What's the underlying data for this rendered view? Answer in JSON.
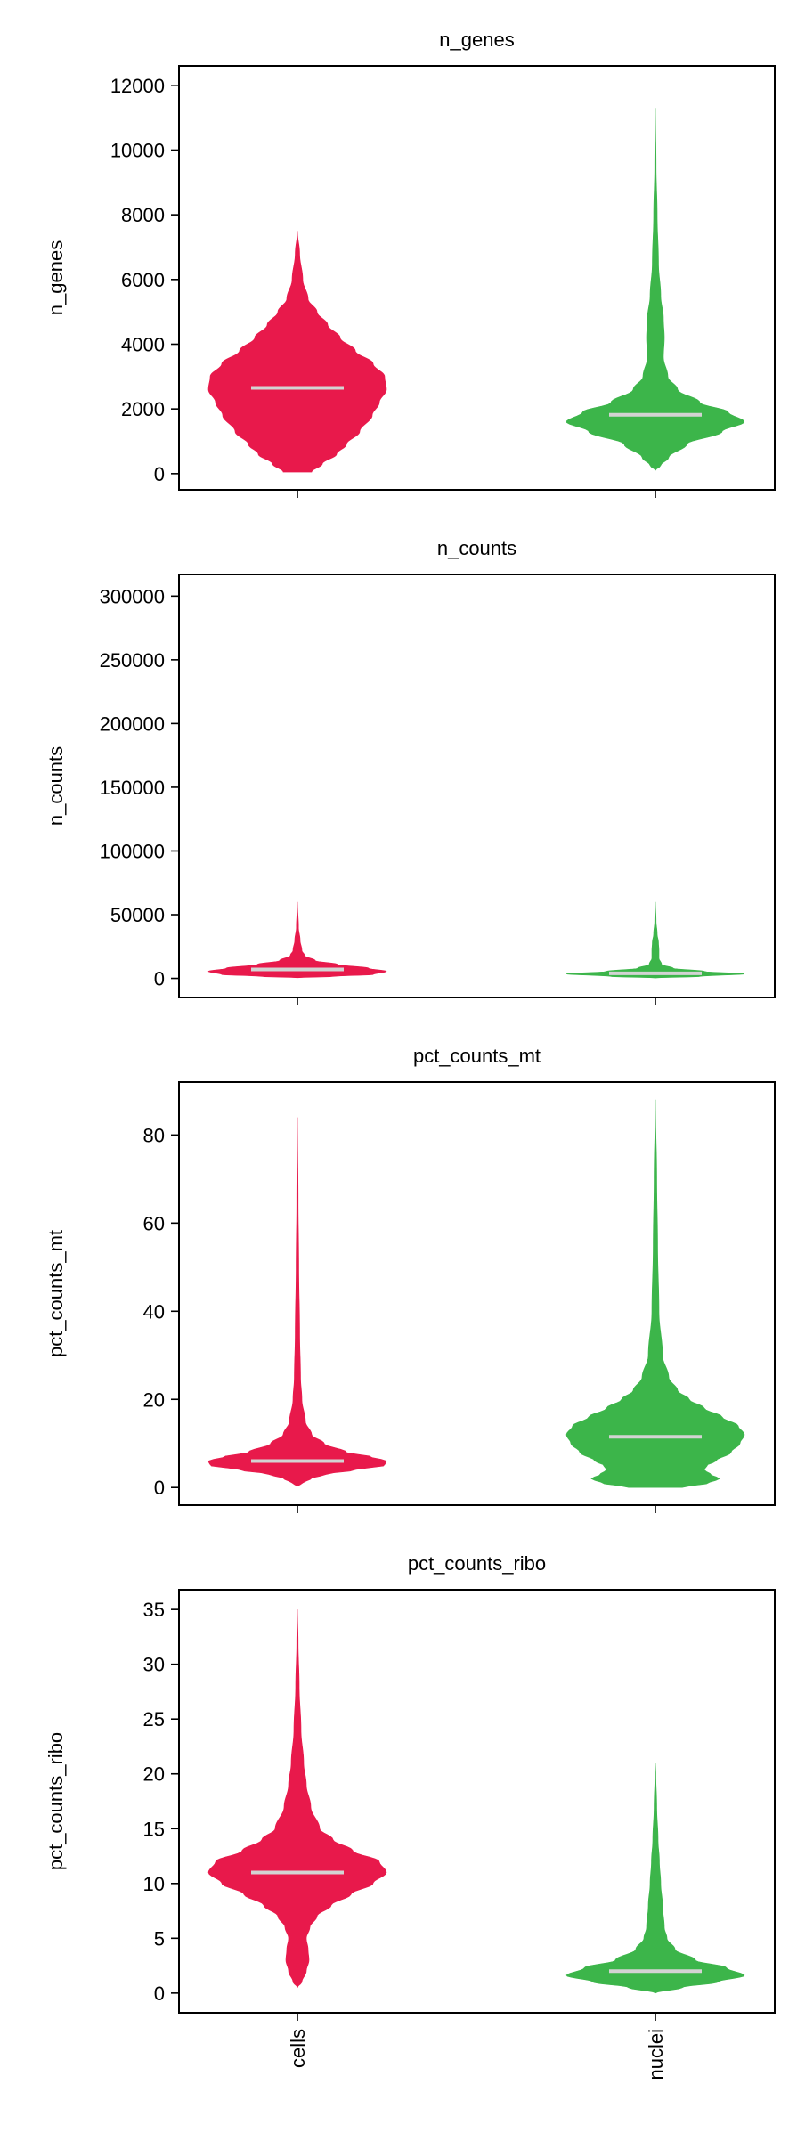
{
  "chart_data": [
    {
      "type": "violin",
      "title": "n_genes",
      "ylabel": "n_genes",
      "categories": [
        "cells",
        "nuclei"
      ],
      "ylim": [
        -500,
        12600
      ],
      "yticks": [
        0,
        2000,
        4000,
        6000,
        8000,
        10000,
        12000
      ],
      "series": [
        {
          "color": "#e8194b",
          "median": 2650,
          "profile": [
            [
              50,
              0.16
            ],
            [
              300,
              0.28
            ],
            [
              600,
              0.44
            ],
            [
              900,
              0.55
            ],
            [
              1300,
              0.7
            ],
            [
              1800,
              0.84
            ],
            [
              2200,
              0.92
            ],
            [
              2600,
              1.0
            ],
            [
              3000,
              0.98
            ],
            [
              3400,
              0.85
            ],
            [
              3800,
              0.65
            ],
            [
              4200,
              0.48
            ],
            [
              4600,
              0.34
            ],
            [
              5000,
              0.22
            ],
            [
              5400,
              0.12
            ],
            [
              6000,
              0.06
            ],
            [
              6800,
              0.025
            ],
            [
              7500,
              0.0
            ]
          ]
        },
        {
          "color": "#3cb54a",
          "median": 1820,
          "profile": [
            [
              100,
              0.0
            ],
            [
              250,
              0.06
            ],
            [
              500,
              0.15
            ],
            [
              900,
              0.35
            ],
            [
              1300,
              0.75
            ],
            [
              1600,
              1.0
            ],
            [
              1900,
              0.82
            ],
            [
              2200,
              0.5
            ],
            [
              2600,
              0.25
            ],
            [
              3000,
              0.14
            ],
            [
              3600,
              0.09
            ],
            [
              4200,
              0.1
            ],
            [
              4800,
              0.09
            ],
            [
              5500,
              0.06
            ],
            [
              6500,
              0.035
            ],
            [
              8000,
              0.02
            ],
            [
              9500,
              0.008
            ],
            [
              11300,
              0.0
            ]
          ]
        }
      ]
    },
    {
      "type": "violin",
      "title": "n_counts",
      "ylabel": "n_counts",
      "categories": [
        "cells",
        "nuclei"
      ],
      "ylim": [
        -15000,
        317000
      ],
      "yticks": [
        0,
        50000,
        100000,
        150000,
        200000,
        250000,
        300000
      ],
      "series": [
        {
          "color": "#e8194b",
          "median": 7000,
          "profile": [
            [
              500,
              0.0
            ],
            [
              1500,
              0.4
            ],
            [
              3000,
              0.85
            ],
            [
              5500,
              1.0
            ],
            [
              8000,
              0.8
            ],
            [
              11000,
              0.45
            ],
            [
              14000,
              0.2
            ],
            [
              18000,
              0.08
            ],
            [
              22000,
              0.05
            ],
            [
              30000,
              0.03
            ],
            [
              40000,
              0.012
            ],
            [
              60000,
              0.0
            ]
          ]
        },
        {
          "color": "#3cb54a",
          "median": 4000,
          "profile": [
            [
              300,
              0.0
            ],
            [
              1500,
              0.5
            ],
            [
              3500,
              1.0
            ],
            [
              5500,
              0.55
            ],
            [
              8000,
              0.2
            ],
            [
              11000,
              0.07
            ],
            [
              16000,
              0.04
            ],
            [
              22000,
              0.04
            ],
            [
              28000,
              0.035
            ],
            [
              35000,
              0.02
            ],
            [
              45000,
              0.008
            ],
            [
              60000,
              0.0
            ]
          ]
        }
      ]
    },
    {
      "type": "violin",
      "title": "pct_counts_mt",
      "ylabel": "pct_counts_mt",
      "categories": [
        "cells",
        "nuclei"
      ],
      "ylim": [
        -4,
        92
      ],
      "yticks": [
        0,
        20,
        40,
        60,
        80
      ],
      "series": [
        {
          "color": "#e8194b",
          "median": 6,
          "profile": [
            [
              0.3,
              0.0
            ],
            [
              1,
              0.06
            ],
            [
              2,
              0.15
            ],
            [
              3,
              0.32
            ],
            [
              4,
              0.65
            ],
            [
              5,
              0.98
            ],
            [
              6,
              1.0
            ],
            [
              7,
              0.82
            ],
            [
              8,
              0.55
            ],
            [
              10,
              0.3
            ],
            [
              12,
              0.16
            ],
            [
              15,
              0.09
            ],
            [
              20,
              0.05
            ],
            [
              25,
              0.035
            ],
            [
              35,
              0.025
            ],
            [
              50,
              0.015
            ],
            [
              65,
              0.008
            ],
            [
              84,
              0.0
            ]
          ]
        },
        {
          "color": "#3cb54a",
          "median": 11.5,
          "profile": [
            [
              0,
              0.3
            ],
            [
              1,
              0.6
            ],
            [
              2,
              0.72
            ],
            [
              3,
              0.62
            ],
            [
              4,
              0.55
            ],
            [
              5,
              0.58
            ],
            [
              6,
              0.68
            ],
            [
              8,
              0.85
            ],
            [
              10,
              0.95
            ],
            [
              12,
              1.0
            ],
            [
              14,
              0.93
            ],
            [
              16,
              0.75
            ],
            [
              18,
              0.55
            ],
            [
              20,
              0.38
            ],
            [
              22,
              0.25
            ],
            [
              25,
              0.15
            ],
            [
              30,
              0.08
            ],
            [
              40,
              0.04
            ],
            [
              55,
              0.025
            ],
            [
              70,
              0.015
            ],
            [
              88,
              0.0
            ]
          ]
        }
      ]
    },
    {
      "type": "violin",
      "title": "pct_counts_ribo",
      "ylabel": "pct_counts_ribo",
      "categories": [
        "cells",
        "nuclei"
      ],
      "ylim": [
        -1.8,
        36.8
      ],
      "yticks": [
        0,
        5,
        10,
        15,
        20,
        25,
        30,
        35
      ],
      "series": [
        {
          "color": "#e8194b",
          "median": 11,
          "profile": [
            [
              0.5,
              0.0
            ],
            [
              1,
              0.05
            ],
            [
              2,
              0.1
            ],
            [
              3,
              0.13
            ],
            [
              4,
              0.12
            ],
            [
              5,
              0.1
            ],
            [
              6,
              0.14
            ],
            [
              7,
              0.22
            ],
            [
              8,
              0.38
            ],
            [
              9,
              0.6
            ],
            [
              10,
              0.85
            ],
            [
              11,
              1.0
            ],
            [
              12,
              0.92
            ],
            [
              13,
              0.62
            ],
            [
              14,
              0.4
            ],
            [
              15,
              0.25
            ],
            [
              17,
              0.15
            ],
            [
              19,
              0.1
            ],
            [
              21,
              0.07
            ],
            [
              24,
              0.04
            ],
            [
              28,
              0.02
            ],
            [
              32,
              0.008
            ],
            [
              35,
              0.0
            ]
          ]
        },
        {
          "color": "#3cb54a",
          "median": 2,
          "profile": [
            [
              0,
              0.0
            ],
            [
              0.5,
              0.3
            ],
            [
              1,
              0.7
            ],
            [
              1.6,
              1.0
            ],
            [
              2.3,
              0.8
            ],
            [
              3,
              0.45
            ],
            [
              4,
              0.22
            ],
            [
              5,
              0.13
            ],
            [
              6,
              0.1
            ],
            [
              8,
              0.08
            ],
            [
              10,
              0.06
            ],
            [
              12,
              0.045
            ],
            [
              14,
              0.03
            ],
            [
              17,
              0.015
            ],
            [
              20,
              0.005
            ],
            [
              21,
              0.0
            ]
          ]
        }
      ]
    }
  ]
}
